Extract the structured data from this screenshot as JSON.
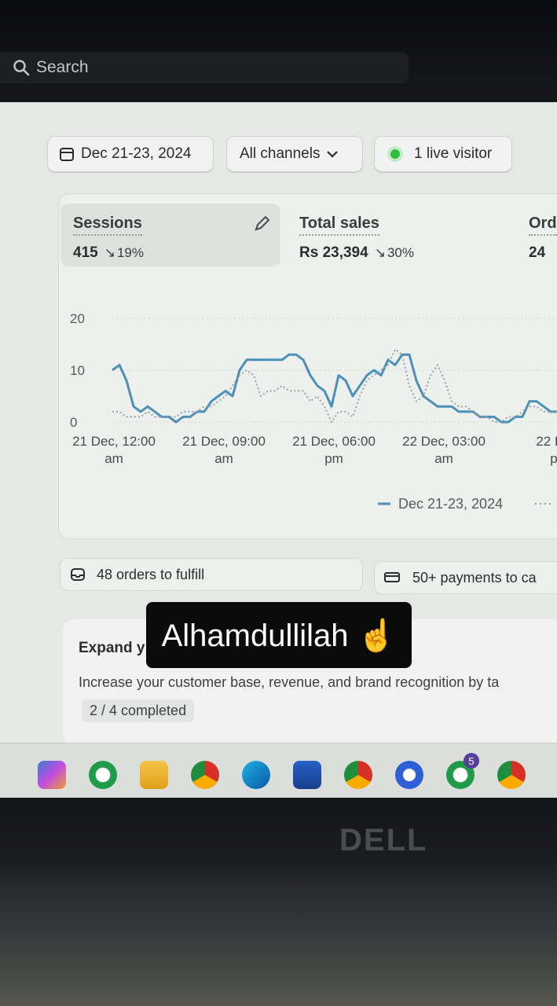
{
  "search": {
    "placeholder": "Search"
  },
  "filters": {
    "date_range": "Dec 21-23, 2024",
    "channels": "All channels",
    "live_visitor": "1 live visitor"
  },
  "metrics": [
    {
      "label": "Sessions",
      "value": "415",
      "trend": "19%"
    },
    {
      "label": "Total sales",
      "value": "Rs 23,394",
      "trend": "30%"
    },
    {
      "label": "Ord",
      "value": "24",
      "trend": ""
    }
  ],
  "chart_data": {
    "type": "line",
    "y_ticks": [
      "20",
      "10",
      "0"
    ],
    "ylim": [
      0,
      20
    ],
    "x_labels": [
      [
        "21 Dec, 12:00",
        "am"
      ],
      [
        "21 Dec, 09:00",
        "am"
      ],
      [
        "21 Dec, 06:00",
        "pm"
      ],
      [
        "22 Dec, 03:00",
        "am"
      ],
      [
        "22 De",
        "p"
      ]
    ],
    "legend": "Dec 21-23, 2024",
    "series": [
      {
        "style": "solid",
        "color": "#4a90b8",
        "values": [
          10,
          11,
          8,
          3,
          2,
          3,
          2,
          1,
          1,
          0,
          1,
          1,
          2,
          2,
          4,
          5,
          6,
          5,
          10,
          12,
          12,
          12,
          12,
          12,
          12,
          13,
          13,
          12,
          9,
          7,
          6,
          3,
          9,
          8,
          5,
          7,
          9,
          10,
          9,
          12,
          11,
          13,
          13,
          8,
          5,
          4,
          3,
          3,
          3,
          2,
          2,
          2,
          1,
          1,
          1,
          0,
          0,
          1,
          1,
          4,
          4,
          3,
          2,
          2
        ]
      },
      {
        "style": "dotted",
        "color": "#9aa0a6",
        "values": [
          2,
          2,
          1,
          1,
          1,
          2,
          1,
          1,
          1,
          1,
          2,
          2,
          2,
          3,
          3,
          4,
          5,
          7,
          9,
          10,
          9,
          5,
          6,
          6,
          7,
          6,
          6,
          6,
          4,
          5,
          3,
          0,
          2,
          2,
          1,
          5,
          8,
          9,
          10,
          11,
          14,
          13,
          7,
          4,
          5,
          9,
          11,
          8,
          4,
          3,
          3,
          2,
          1,
          1,
          0,
          0,
          1,
          1,
          2,
          3,
          3,
          2,
          2,
          2
        ]
      }
    ]
  },
  "banners": {
    "orders": "48 orders to fulfill",
    "payments": "50+ payments to ca"
  },
  "expand_card": {
    "title": "Expand y",
    "description": "Increase your customer base, revenue, and brand recognition by ta",
    "progress": "2 / 4 completed"
  },
  "sticker": {
    "text": "Alhamdullilah ☝️"
  },
  "bezel": {
    "brand": "DELL"
  },
  "taskbar": {
    "whatsapp_badge": "5",
    "apps": [
      "copilot-icon",
      "whatsapp-icon",
      "file-explorer-icon",
      "chrome-icon",
      "edge-icon",
      "microsoft-store-icon",
      "chrome-icon",
      "vpn-icon",
      "whatsapp-business-icon",
      "chrome-icon"
    ]
  }
}
